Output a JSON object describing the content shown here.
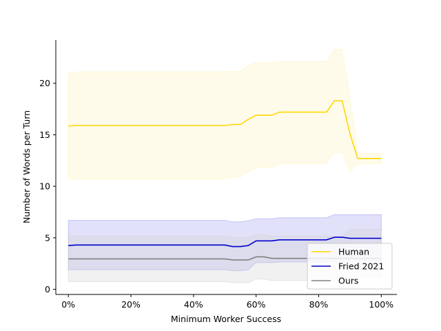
{
  "chart_data": {
    "type": "line",
    "title": "",
    "xlabel": "Minimum Worker Success",
    "ylabel": "Number of Words per Turn",
    "xlim": [
      -0.04,
      1.05
    ],
    "ylim": [
      -0.5,
      24.2
    ],
    "xticks": [
      0,
      0.2,
      0.4,
      0.6,
      0.8,
      1.0
    ],
    "xtick_labels": [
      "0%",
      "20%",
      "40%",
      "60%",
      "80%",
      "100%"
    ],
    "yticks": [
      0,
      5,
      10,
      15,
      20
    ],
    "ytick_labels": [
      "0",
      "5",
      "10",
      "15",
      "20"
    ],
    "grid": false,
    "legend_position": "lower-right",
    "x": [
      0,
      0.025,
      0.05,
      0.075,
      0.1,
      0.125,
      0.15,
      0.175,
      0.2,
      0.225,
      0.25,
      0.275,
      0.3,
      0.325,
      0.35,
      0.375,
      0.4,
      0.425,
      0.45,
      0.475,
      0.5,
      0.525,
      0.55,
      0.575,
      0.6,
      0.625,
      0.65,
      0.675,
      0.7,
      0.725,
      0.75,
      0.775,
      0.8,
      0.825,
      0.85,
      0.875,
      0.9,
      0.925,
      0.95,
      0.975,
      1.0
    ],
    "series": [
      {
        "name": "Human",
        "color": "#ffd700",
        "band_color": "#fff1b8",
        "values": [
          15.85,
          15.9,
          15.9,
          15.9,
          15.9,
          15.9,
          15.9,
          15.9,
          15.9,
          15.9,
          15.9,
          15.9,
          15.9,
          15.9,
          15.9,
          15.9,
          15.9,
          15.9,
          15.9,
          15.9,
          15.9,
          16.0,
          16.0,
          16.5,
          16.9,
          16.9,
          16.9,
          17.2,
          17.2,
          17.2,
          17.2,
          17.2,
          17.2,
          17.2,
          18.3,
          18.3,
          15.1,
          12.7,
          12.7,
          12.7,
          12.7
        ],
        "lower": [
          10.7,
          10.7,
          10.7,
          10.7,
          10.7,
          10.7,
          10.7,
          10.7,
          10.7,
          10.7,
          10.7,
          10.7,
          10.7,
          10.7,
          10.7,
          10.7,
          10.7,
          10.7,
          10.7,
          10.7,
          10.7,
          10.9,
          10.9,
          11.4,
          11.8,
          11.8,
          11.8,
          12.2,
          12.2,
          12.2,
          12.2,
          12.2,
          12.2,
          12.2,
          13.3,
          13.3,
          11.4,
          12.2,
          12.2,
          12.2,
          12.2
        ],
        "upper": [
          21.0,
          21.1,
          21.1,
          21.1,
          21.1,
          21.1,
          21.1,
          21.1,
          21.1,
          21.1,
          21.1,
          21.1,
          21.1,
          21.1,
          21.1,
          21.1,
          21.1,
          21.1,
          21.1,
          21.1,
          21.1,
          21.15,
          21.15,
          21.7,
          22.0,
          22.0,
          22.0,
          22.1,
          22.1,
          22.1,
          22.1,
          22.1,
          22.1,
          22.1,
          23.3,
          23.3,
          18.6,
          13.2,
          13.2,
          13.2,
          13.2
        ]
      },
      {
        "name": "Fried 2021",
        "color": "#0000cd",
        "band_color": "#9a9aee",
        "values": [
          4.25,
          4.3,
          4.3,
          4.3,
          4.3,
          4.3,
          4.3,
          4.3,
          4.3,
          4.3,
          4.3,
          4.3,
          4.3,
          4.3,
          4.3,
          4.3,
          4.3,
          4.3,
          4.3,
          4.3,
          4.3,
          4.15,
          4.15,
          4.25,
          4.7,
          4.7,
          4.7,
          4.8,
          4.8,
          4.8,
          4.8,
          4.8,
          4.8,
          4.8,
          5.05,
          5.05,
          4.95,
          4.95,
          4.95,
          4.95,
          4.95
        ],
        "lower": [
          1.9,
          1.9,
          1.9,
          1.9,
          1.9,
          1.9,
          1.9,
          1.9,
          1.9,
          1.9,
          1.9,
          1.9,
          1.9,
          1.9,
          1.9,
          1.9,
          1.9,
          1.9,
          1.9,
          1.9,
          1.9,
          1.8,
          1.8,
          1.9,
          2.6,
          2.6,
          2.6,
          2.65,
          2.65,
          2.65,
          2.65,
          2.65,
          2.65,
          2.65,
          2.8,
          2.8,
          2.8,
          2.8,
          2.8,
          2.8,
          2.8
        ],
        "upper": [
          6.7,
          6.7,
          6.7,
          6.7,
          6.7,
          6.7,
          6.7,
          6.7,
          6.7,
          6.7,
          6.7,
          6.7,
          6.7,
          6.7,
          6.7,
          6.7,
          6.7,
          6.7,
          6.7,
          6.7,
          6.7,
          6.55,
          6.55,
          6.65,
          6.85,
          6.85,
          6.85,
          6.95,
          6.95,
          6.95,
          6.95,
          6.95,
          6.95,
          6.95,
          7.25,
          7.25,
          7.25,
          7.25,
          7.25,
          7.25,
          7.25
        ]
      },
      {
        "name": "Ours",
        "color": "#808080",
        "band_color": "#cfcfcf",
        "values": [
          2.95,
          2.95,
          2.95,
          2.95,
          2.95,
          2.95,
          2.95,
          2.95,
          2.95,
          2.95,
          2.95,
          2.95,
          2.95,
          2.95,
          2.95,
          2.95,
          2.95,
          2.95,
          2.95,
          2.95,
          2.95,
          2.85,
          2.85,
          2.85,
          3.15,
          3.15,
          3.0,
          3.0,
          3.0,
          3.0,
          3.0,
          3.0,
          3.0,
          3.0,
          3.0,
          3.0,
          3.0,
          3.0,
          3.0,
          3.0,
          3.0
        ],
        "lower": [
          0.75,
          0.75,
          0.75,
          0.75,
          0.75,
          0.75,
          0.75,
          0.75,
          0.75,
          0.75,
          0.75,
          0.75,
          0.75,
          0.75,
          0.75,
          0.75,
          0.75,
          0.75,
          0.75,
          0.75,
          0.75,
          0.65,
          0.65,
          0.65,
          1.0,
          1.0,
          0.85,
          0.85,
          0.85,
          0.85,
          0.85,
          0.85,
          0.85,
          0.85,
          0.85,
          0.85,
          1.1,
          1.2,
          1.2,
          1.2,
          1.2
        ],
        "upper": [
          5.15,
          5.15,
          5.15,
          5.15,
          5.15,
          5.15,
          5.15,
          5.15,
          5.15,
          5.15,
          5.15,
          5.15,
          5.15,
          5.15,
          5.15,
          5.15,
          5.15,
          5.15,
          5.15,
          5.15,
          5.15,
          5.05,
          5.05,
          5.05,
          5.3,
          5.3,
          5.15,
          5.15,
          5.15,
          5.15,
          5.15,
          5.15,
          5.15,
          5.15,
          5.15,
          5.15,
          5.8,
          5.8,
          5.8,
          5.8,
          5.8
        ]
      }
    ]
  }
}
